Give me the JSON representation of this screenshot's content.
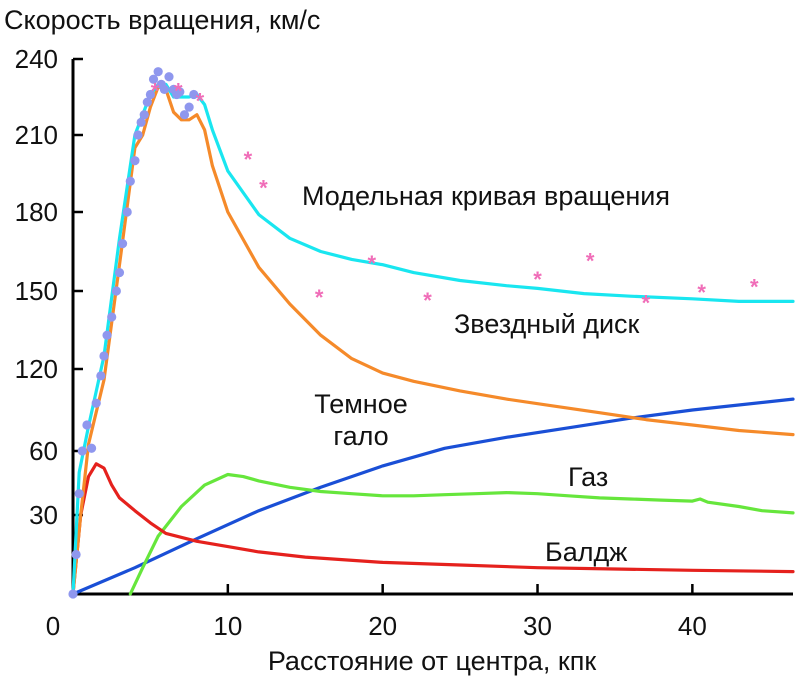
{
  "chart_data": {
    "type": "line",
    "ylabel": "Скорость вращения, км/с",
    "xlabel": "Расстояние от центра, кпк",
    "x_ticks": [
      0,
      10,
      20,
      30,
      40
    ],
    "y_ticks": [
      {
        "value": 30,
        "label": "30"
      },
      {
        "value": 60,
        "label": "60"
      },
      {
        "value": 120,
        "label": "120"
      },
      {
        "value": 150,
        "label": "150"
      },
      {
        "value": 180,
        "label": "180"
      },
      {
        "value": 210,
        "label": "210"
      },
      {
        "value": 240,
        "label": "240"
      }
    ],
    "xlim": [
      0,
      46.5
    ],
    "ylim": [
      0,
      240
    ],
    "grid": false,
    "series": [
      {
        "name": "Модельная кривая вращения",
        "color": "#19e6f0",
        "x": [
          0,
          0.4,
          1,
          2,
          3,
          4,
          5,
          5.5,
          6,
          6.5,
          7,
          7.5,
          8,
          8.5,
          9,
          10,
          12,
          14,
          16,
          18,
          20,
          22,
          25,
          28,
          30,
          33,
          36,
          40,
          43,
          46.5
        ],
        "y": [
          0,
          50,
          78,
          125,
          170,
          210,
          226,
          230,
          230,
          225,
          225,
          225,
          226,
          222,
          212,
          196,
          179,
          170,
          165,
          162,
          160,
          157,
          154,
          152,
          151,
          149,
          148,
          147,
          146,
          146
        ]
      },
      {
        "name": "Звездный диск",
        "color": "#f58a2a",
        "x": [
          0,
          0.5,
          1,
          2,
          3,
          4,
          4.5,
          5,
          5.5,
          6,
          6.5,
          7,
          7.5,
          8,
          8.5,
          9,
          10,
          12,
          14,
          16,
          18,
          20,
          22,
          25,
          28,
          31,
          34,
          37,
          40,
          43,
          46.5
        ],
        "y": [
          0,
          30,
          65,
          112,
          160,
          205,
          210,
          221,
          229,
          228,
          219,
          216,
          216,
          218,
          212,
          198,
          180,
          159,
          145,
          133,
          124,
          117,
          111,
          104,
          98,
          93,
          88,
          83,
          79,
          75,
          72
        ]
      },
      {
        "name": "Темное гало",
        "color": "#1a4fd6",
        "x": [
          0,
          4,
          8,
          12,
          16,
          20,
          24,
          28,
          32,
          36,
          40,
          46.5
        ],
        "y": [
          0,
          10,
          21,
          32,
          43,
          53,
          62,
          70,
          77,
          84,
          90,
          98
        ]
      },
      {
        "name": "Газ",
        "color": "#66e63c",
        "x": [
          3.7,
          4.5,
          5.5,
          7,
          8.5,
          10,
          11,
          12,
          14,
          16,
          18,
          20,
          22,
          24,
          26,
          28,
          30,
          32,
          34,
          36,
          38,
          40,
          40.5,
          41,
          43,
          44.5,
          46.5
        ],
        "y": [
          0,
          10,
          22,
          34,
          44,
          49,
          48,
          46,
          43,
          41,
          40,
          39,
          39,
          39.5,
          40,
          40.5,
          40,
          39,
          38,
          37.5,
          37,
          36.5,
          37.5,
          36,
          34,
          32,
          31
        ]
      },
      {
        "name": "Балдж",
        "color": "#e5211d",
        "x": [
          0,
          0.5,
          1,
          1.5,
          2,
          2.5,
          3,
          4,
          5,
          6,
          8,
          10,
          12,
          15,
          20,
          25,
          30,
          35,
          40,
          46.5
        ],
        "y": [
          0,
          30,
          48,
          54,
          52,
          44,
          38,
          32,
          27,
          23,
          20,
          18,
          16,
          14,
          12,
          11,
          10,
          9.5,
          9,
          8.5
        ]
      }
    ],
    "observed_inner": {
      "color": "#8f97ee",
      "x": [
        0,
        0.2,
        0.4,
        0.6,
        0.9,
        1.2,
        1.5,
        1.8,
        2.0,
        2.2,
        2.5,
        2.8,
        3.0,
        3.2,
        3.5,
        3.7,
        4.0,
        4.2,
        4.4,
        4.6,
        4.8,
        5.0,
        5.2,
        5.5,
        5.7,
        5.9,
        6.2,
        6.5,
        6.7,
        6.9,
        7.2,
        7.5,
        7.8
      ],
      "y": [
        0,
        15,
        40,
        60,
        79,
        62,
        95,
        115,
        125,
        133,
        140,
        150,
        157,
        168,
        180,
        192,
        200,
        210,
        215,
        218,
        223,
        226,
        232,
        235,
        230,
        228,
        233,
        228,
        226,
        227,
        218,
        221,
        226
      ]
    },
    "observed_outer": {
      "color": "#f06db8",
      "x": [
        5.3,
        6.8,
        8.2,
        11.3,
        12.3,
        15.9,
        19.3,
        22.9,
        30,
        33.4,
        37,
        40.6,
        44
      ],
      "y": [
        228,
        228,
        224,
        201,
        190,
        148,
        161,
        147,
        155,
        162,
        146,
        150,
        152
      ]
    }
  }
}
